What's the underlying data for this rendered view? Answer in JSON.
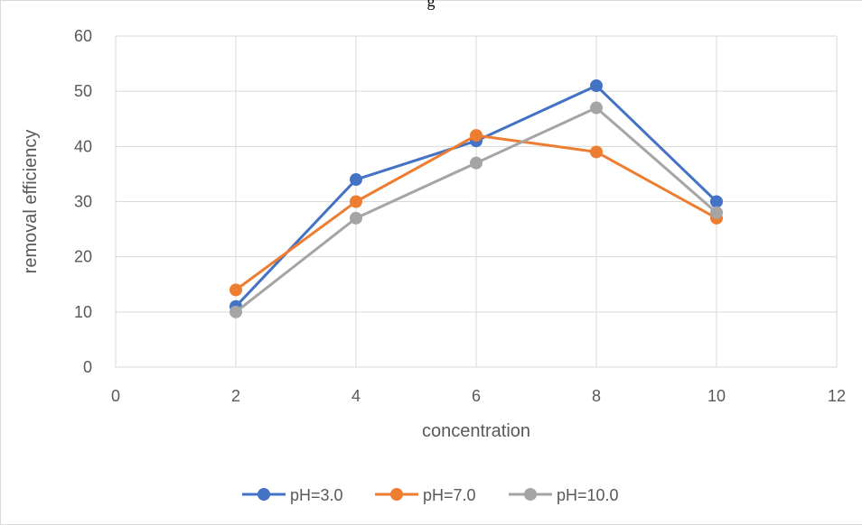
{
  "page": {
    "top_fragment": "g"
  },
  "chart_data": {
    "type": "line",
    "title": "",
    "xlabel": "concentration",
    "ylabel": "removal efficiency",
    "xlim": [
      0,
      12
    ],
    "ylim": [
      0,
      60
    ],
    "x_ticks": [
      "0",
      "2",
      "4",
      "6",
      "8",
      "10",
      "12"
    ],
    "y_ticks": [
      "0",
      "10",
      "20",
      "30",
      "40",
      "50",
      "60"
    ],
    "x": [
      2,
      4,
      6,
      8,
      10
    ],
    "grid": true,
    "legend_position": "bottom",
    "series": [
      {
        "name": "pH=3.0",
        "color": "#4472c4",
        "values": [
          11,
          34,
          41,
          51,
          30
        ]
      },
      {
        "name": "pH=7.0",
        "color": "#ed7d31",
        "values": [
          14,
          30,
          42,
          39,
          27
        ]
      },
      {
        "name": "pH=10.0",
        "color": "#a5a5a5",
        "values": [
          10,
          27,
          37,
          47,
          28
        ]
      }
    ]
  }
}
